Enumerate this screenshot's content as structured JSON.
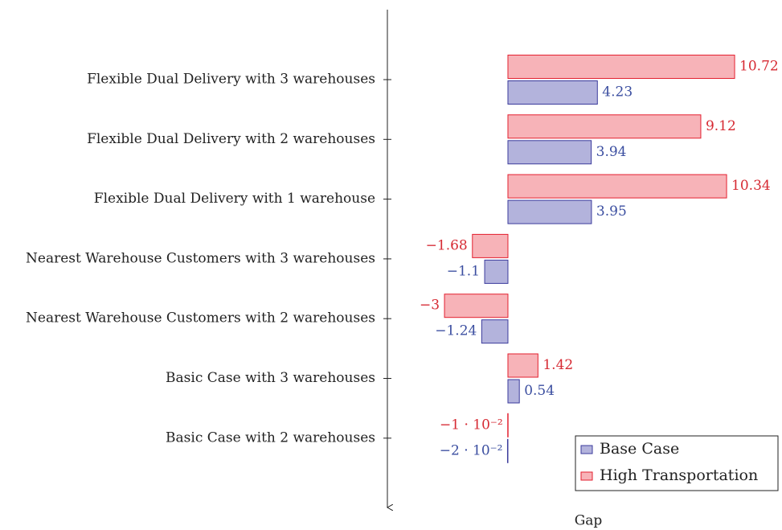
{
  "chart_data": {
    "type": "hbar",
    "xlabel": "Gap",
    "categories": [
      "Flexible Dual Delivery with 3 warehouses",
      "Flexible Dual Delivery with 2 warehouses",
      "Flexible Dual Delivery with 1 warehouse",
      "Nearest Warehouse Customers with 3 warehouses",
      "Nearest Warehouse Customers with 2 warehouses",
      "Basic Case with 3 warehouses",
      "Basic Case with 2 warehouses"
    ],
    "series": [
      {
        "name": "Base Case",
        "color": "#b3b3dc",
        "edge": "#3b3b9c",
        "label_color": "#3b4ea0",
        "values": [
          4.23,
          3.94,
          3.95,
          -1.1,
          -1.24,
          0.54,
          -0.02
        ],
        "value_labels": [
          "4.23",
          "3.94",
          "3.95",
          "−1.1",
          "−1.24",
          "0.54",
          "−2 · 10⁻²"
        ]
      },
      {
        "name": "High Transportation",
        "color": "#f7b3b8",
        "edge": "#e3202f",
        "label_color": "#d62a33",
        "values": [
          10.72,
          9.12,
          10.34,
          -1.68,
          -3,
          1.42,
          -0.01
        ],
        "value_labels": [
          "10.72",
          "9.12",
          "10.34",
          "−1.68",
          "−3",
          "1.42",
          "−1 · 10⁻²"
        ]
      }
    ],
    "xlim": [
      -5.7,
      12.2
    ],
    "legend": "lower right"
  }
}
